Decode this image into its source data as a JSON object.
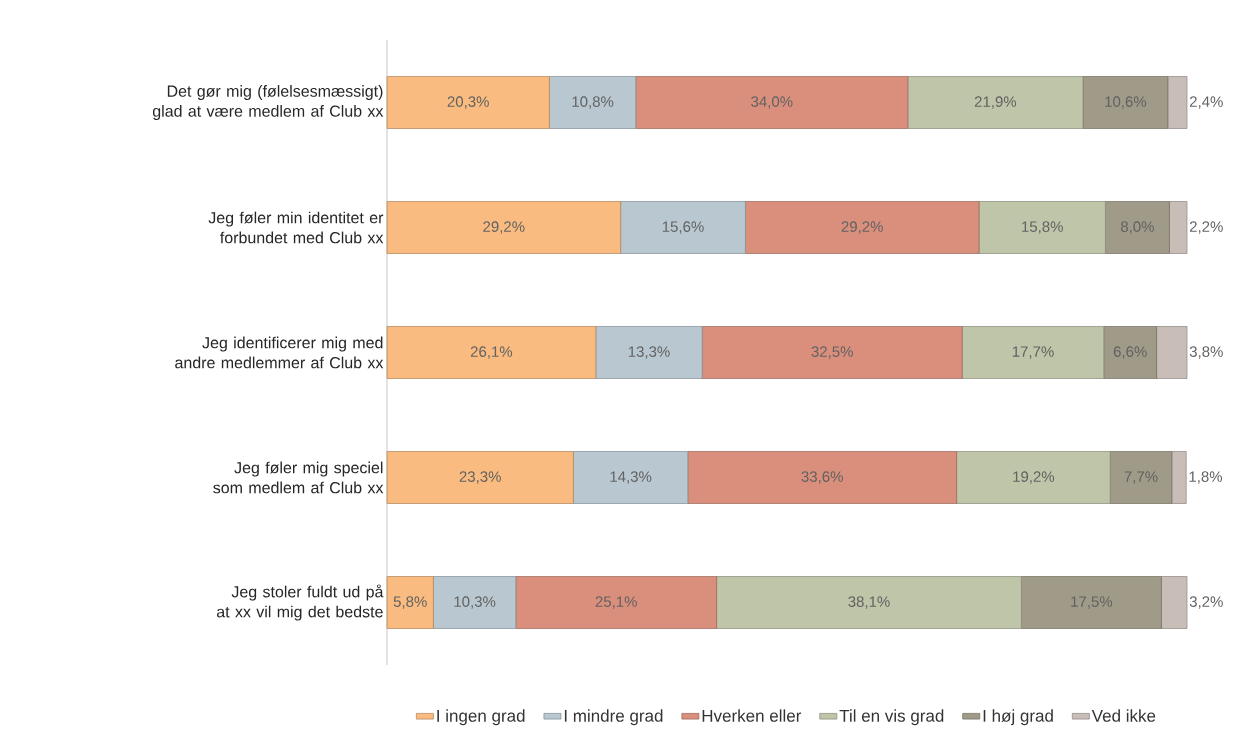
{
  "chart_data": {
    "type": "bar",
    "orientation": "horizontal",
    "stacked": true,
    "legend": "bottom",
    "categories": [
      "Det gør mig (følelsesmæssigt) glad at være medlem af Club xx",
      "Jeg føler min identitet er forbundet med Club xx",
      "Jeg identificerer mig med andre medlemmer af Club xx",
      "Jeg føler mig speciel som medlem af Club xx",
      "Jeg stoler fuldt ud på at xx vil mig det bedste"
    ],
    "series": [
      {
        "name": "I ingen grad",
        "color": "#f9bb7f",
        "values": [
          20.3,
          29.2,
          26.1,
          23.3,
          5.8
        ],
        "value_labels": [
          "20,3%",
          "29,2%",
          "26,1%",
          "23,3%",
          "5,8%"
        ]
      },
      {
        "name": "I mindre grad",
        "color": "#b9c8d0",
        "values": [
          10.8,
          15.6,
          13.3,
          14.3,
          10.3
        ],
        "value_labels": [
          "10,8%",
          "15,6%",
          "13,3%",
          "14,3%",
          "10,3%"
        ]
      },
      {
        "name": "Hverken eller",
        "color": "#d98f7c",
        "values": [
          34.0,
          29.2,
          32.5,
          33.6,
          25.1
        ],
        "value_labels": [
          "34,0%",
          "29,2%",
          "32,5%",
          "33,6%",
          "25,1%"
        ]
      },
      {
        "name": "Til en vis grad",
        "color": "#bfc5a8",
        "values": [
          21.9,
          15.8,
          17.7,
          19.2,
          38.1
        ],
        "value_labels": [
          "21,9%",
          "15,8%",
          "17,7%",
          "19,2%",
          "38,1%"
        ]
      },
      {
        "name": "I høj grad",
        "color": "#a09a88",
        "values": [
          10.6,
          8.0,
          6.6,
          7.7,
          17.5
        ],
        "value_labels": [
          "10,6%",
          "8,0%",
          "6,6%",
          "7,7%",
          "17,5%"
        ]
      },
      {
        "name": "Ved ikke",
        "color": "#c9bdb8",
        "values": [
          2.4,
          2.2,
          3.8,
          1.8,
          3.2
        ],
        "value_labels": [
          "2,4%",
          "2,2%",
          "3,8%",
          "1,8%",
          "3,2%"
        ]
      }
    ]
  }
}
